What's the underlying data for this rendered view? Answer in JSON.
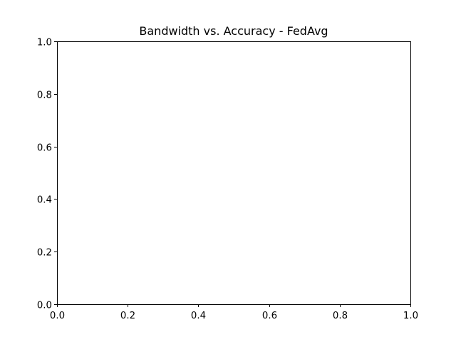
{
  "chart_data": {
    "type": "line",
    "title": "Bandwidth vs. Accuracy - FedAvg",
    "xlabel": "",
    "ylabel": "",
    "xlim": [
      0.0,
      1.0
    ],
    "ylim": [
      0.0,
      1.0
    ],
    "xticks": [
      "0.0",
      "0.2",
      "0.4",
      "0.6",
      "0.8",
      "1.0"
    ],
    "yticks": [
      "0.0",
      "0.2",
      "0.4",
      "0.6",
      "0.8",
      "1.0"
    ],
    "grid": false,
    "legend": "none",
    "series": []
  }
}
